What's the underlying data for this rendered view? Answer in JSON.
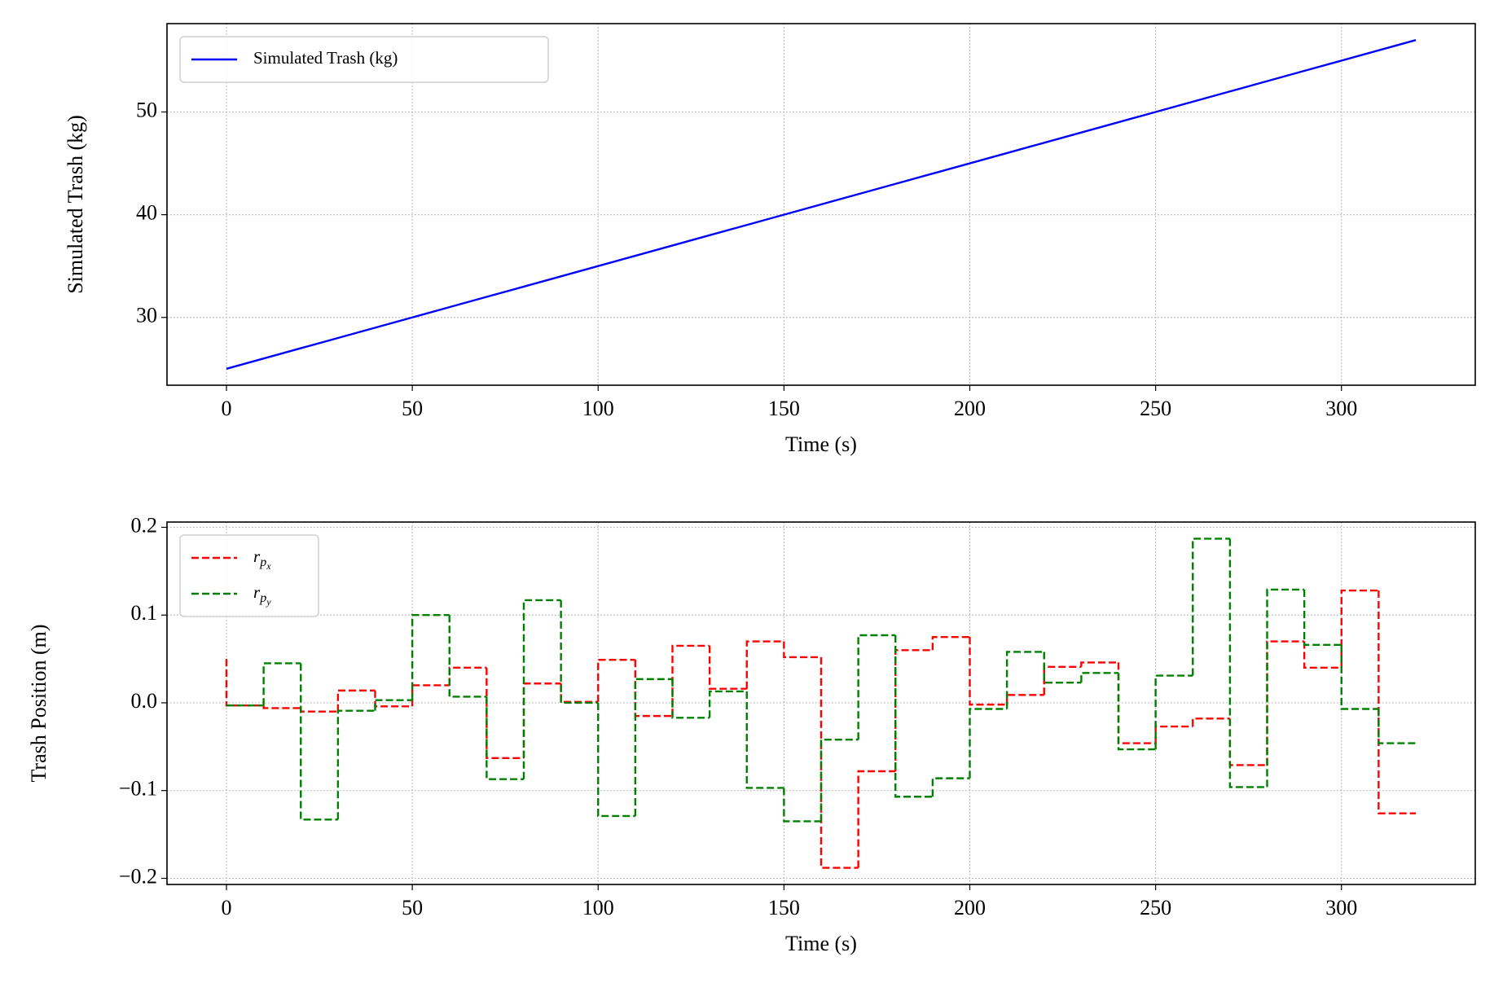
{
  "chart_data": [
    {
      "type": "line",
      "xlabel": "Time (s)",
      "ylabel": "Simulated Trash (kg)",
      "x": [
        0,
        10,
        20,
        30,
        40,
        50,
        60,
        70,
        80,
        90,
        100,
        110,
        120,
        130,
        140,
        150,
        160,
        170,
        180,
        190,
        200,
        210,
        220,
        230,
        240,
        250,
        260,
        270,
        280,
        290,
        300,
        310,
        320
      ],
      "series": [
        {
          "name": "Simulated Trash (kg)",
          "color": "#0000ff",
          "style": "solid",
          "values": [
            25,
            26,
            27,
            28,
            29,
            30,
            31,
            32,
            33,
            34,
            35,
            36,
            37,
            38,
            39,
            40,
            41,
            42,
            43,
            44,
            45,
            46,
            47,
            48,
            49,
            50,
            51,
            52,
            53,
            54,
            55,
            56,
            57
          ]
        }
      ],
      "xlim": [
        -16,
        336
      ],
      "xticks": [
        0,
        50,
        100,
        150,
        200,
        250,
        300
      ],
      "ylim": [
        23.4,
        58.6
      ],
      "yticks": [
        30,
        40,
        50
      ],
      "grid": true,
      "legend": "upper left"
    },
    {
      "type": "step",
      "xlabel": "Time (s)",
      "ylabel": "Trash Position (m)",
      "x": [
        0,
        10,
        20,
        30,
        40,
        50,
        60,
        70,
        80,
        90,
        100,
        110,
        120,
        130,
        140,
        150,
        160,
        170,
        180,
        190,
        200,
        210,
        220,
        230,
        240,
        250,
        260,
        270,
        280,
        290,
        300,
        310,
        320
      ],
      "series": [
        {
          "name": "rpx",
          "color": "#ff0000",
          "style": "dashed",
          "values": [
            0.05,
            -0.003,
            -0.006,
            -0.01,
            0.014,
            -0.004,
            0.02,
            0.04,
            -0.063,
            0.022,
            0.001,
            0.049,
            -0.015,
            0.065,
            0.016,
            0.07,
            0.052,
            -0.188,
            -0.078,
            0.06,
            0.075,
            -0.002,
            0.009,
            0.041,
            0.046,
            -0.046,
            -0.027,
            -0.018,
            -0.071,
            0.07,
            0.04,
            0.128,
            -0.126
          ]
        },
        {
          "name": "rpy",
          "color": "#008000",
          "style": "dashed",
          "values": [
            -0.003,
            -0.003,
            0.045,
            -0.133,
            -0.009,
            0.003,
            0.1,
            0.007,
            -0.087,
            0.117,
            0,
            -0.129,
            0.027,
            -0.017,
            0.013,
            -0.097,
            -0.135,
            -0.042,
            0.077,
            -0.107,
            -0.086,
            -0.007,
            0.058,
            0.023,
            0.034,
            -0.053,
            0.031,
            0.187,
            -0.096,
            0.129,
            0.066,
            -0.007,
            -0.046
          ]
        }
      ],
      "xlim": [
        -16,
        336
      ],
      "xticks": [
        0,
        50,
        100,
        150,
        200,
        250,
        300
      ],
      "ylim": [
        -0.207,
        0.206
      ],
      "yticks": [
        {
          "value": -0.2,
          "label": "−0.2"
        },
        {
          "value": -0.1,
          "label": "−0.1"
        },
        {
          "value": 0,
          "label": "0.0"
        },
        {
          "value": 0.1,
          "label": "0.1"
        },
        {
          "value": 0.2,
          "label": "0.2"
        }
      ],
      "grid": true,
      "legend": "upper left"
    }
  ]
}
